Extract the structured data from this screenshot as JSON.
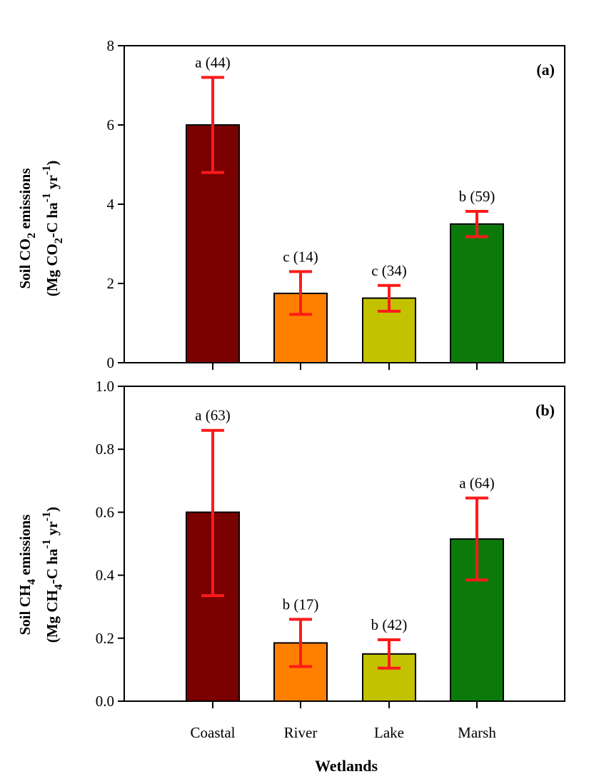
{
  "chart_data": [
    {
      "type": "bar",
      "panel": "(a)",
      "categories": [
        "Coastal",
        "River",
        "Lake",
        "Marsh"
      ],
      "values": [
        6.0,
        1.75,
        1.63,
        3.5
      ],
      "error_low": [
        4.8,
        1.22,
        1.3,
        3.18
      ],
      "error_high": [
        7.2,
        2.3,
        1.95,
        3.82
      ],
      "annotations": [
        "a (44)",
        "c (14)",
        "c (34)",
        "b (59)"
      ],
      "colors": [
        "#7b0000",
        "#ff8000",
        "#c2c200",
        "#0b7a0b"
      ],
      "error_color": "#ff1a1a",
      "ylabel": {
        "line1_prefix": "Soil CO",
        "line1_sub": "2",
        "line1_suffix": " emissions",
        "line2_a": "(Mg CO",
        "line2_sub": "2",
        "line2_b": "-C ha",
        "line2_sup1": "-1",
        "line2_c": " yr",
        "line2_sup2": "-1",
        "line2_d": ")"
      },
      "ylim": [
        0,
        8
      ],
      "yticks": [
        "0",
        "2",
        "4",
        "6",
        "8"
      ],
      "ytick_values": [
        0,
        2,
        4,
        6,
        8
      ],
      "grid": false
    },
    {
      "type": "bar",
      "panel": "(b)",
      "categories": [
        "Coastal",
        "River",
        "Lake",
        "Marsh"
      ],
      "values": [
        0.6,
        0.185,
        0.15,
        0.515
      ],
      "error_low": [
        0.335,
        0.11,
        0.105,
        0.385
      ],
      "error_high": [
        0.86,
        0.26,
        0.195,
        0.645
      ],
      "annotations": [
        "a (63)",
        "b (17)",
        "b (42)",
        "a (64)"
      ],
      "colors": [
        "#7b0000",
        "#ff8000",
        "#c2c200",
        "#0b7a0b"
      ],
      "error_color": "#ff1a1a",
      "ylabel": {
        "line1_prefix": "Soil CH",
        "line1_sub": "4",
        "line1_suffix": " emissions",
        "line2_a": "(Mg CH",
        "line2_sub": "4",
        "line2_b": "-C ha",
        "line2_sup1": "-1",
        "line2_c": " yr",
        "line2_sup2": "-1",
        "line2_d": ")"
      },
      "ylim": [
        0,
        1.0
      ],
      "yticks": [
        "0.0",
        "0.2",
        "0.4",
        "0.6",
        "0.8",
        "1.0"
      ],
      "ytick_values": [
        0,
        0.2,
        0.4,
        0.6,
        0.8,
        1.0
      ],
      "grid": false
    }
  ],
  "xlabel": "Wetlands"
}
